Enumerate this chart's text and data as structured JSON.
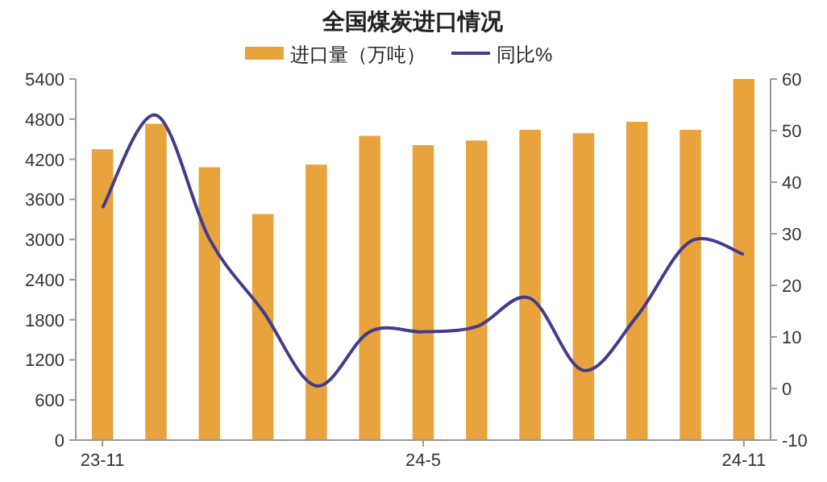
{
  "chart_data": {
    "type": "bar",
    "title": "全国煤炭进口情况",
    "categories": [
      "23-11",
      null,
      null,
      null,
      null,
      null,
      "24-5",
      null,
      null,
      null,
      null,
      null,
      "24-11"
    ],
    "series": [
      {
        "name": "进口量（万吨）",
        "color": "#e8a33d",
        "values": [
          4350,
          4730,
          4080,
          3380,
          4120,
          4550,
          4410,
          4480,
          4640,
          4590,
          4760,
          4640,
          5400
        ]
      },
      {
        "name": "同比%",
        "type": "line",
        "axis": "y2",
        "color": "#433b8c",
        "values": [
          35,
          53,
          29,
          15,
          0.5,
          11,
          11,
          12,
          17.5,
          3.5,
          14,
          28.5,
          26
        ]
      }
    ],
    "ylim": [
      0,
      5400
    ],
    "yticks": [
      0,
      600,
      1200,
      1800,
      2400,
      3000,
      3600,
      4200,
      4800,
      5400
    ],
    "y2lim": [
      -10,
      60
    ],
    "y2ticks": [
      -10,
      0,
      10,
      20,
      30,
      40,
      50,
      60
    ],
    "legend": "top",
    "grid": false
  }
}
